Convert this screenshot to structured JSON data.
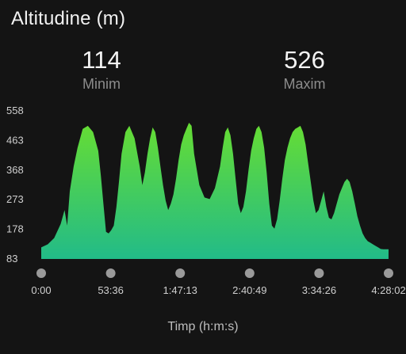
{
  "header": {
    "title": "Altitudine (m)"
  },
  "stats": {
    "min": {
      "value": "114",
      "label": "Minim"
    },
    "max": {
      "value": "526",
      "label": "Maxim"
    }
  },
  "chart_data": {
    "type": "area",
    "title": "Altitudine (m)",
    "xlabel": "Timp (h:m:s)",
    "ylabel": "",
    "y_ticks": [
      "558",
      "463",
      "368",
      "273",
      "178",
      "83"
    ],
    "x_ticks": [
      "0:00",
      "53:36",
      "1:47:13",
      "2:40:49",
      "3:34:26",
      "4:28:02"
    ],
    "x_unit": "minutes",
    "xlim": [
      0,
      268.03
    ],
    "ylim": [
      83,
      558
    ],
    "grid": false,
    "legend": "none",
    "colors": {
      "top": "#66dd33",
      "bottom": "#22bb88",
      "marker": "#9a9a9a"
    },
    "x": [
      0,
      5,
      10,
      15,
      18,
      20,
      22,
      25,
      28,
      32,
      36,
      40,
      44,
      46,
      48,
      50,
      52,
      54,
      56,
      58,
      60,
      62,
      65,
      68,
      72,
      76,
      78,
      80,
      82,
      84,
      86,
      88,
      90,
      92,
      94,
      96,
      98,
      100,
      102,
      104,
      106,
      108,
      110,
      112,
      114,
      116,
      118,
      122,
      126,
      130,
      134,
      138,
      140,
      142,
      144,
      146,
      148,
      150,
      152,
      154,
      156,
      158,
      160,
      162,
      164,
      166,
      168,
      170,
      172,
      174,
      176,
      178,
      180,
      182,
      184,
      186,
      188,
      190,
      192,
      194,
      196,
      198,
      200,
      202,
      204,
      206,
      208,
      210,
      212,
      214,
      216,
      218,
      220,
      222,
      224,
      226,
      228,
      230,
      232,
      234,
      236,
      238,
      240,
      242,
      244,
      246,
      248,
      250,
      252,
      254,
      256,
      258,
      260,
      262,
      264,
      268
    ],
    "y": [
      120,
      130,
      150,
      195,
      240,
      190,
      300,
      380,
      440,
      500,
      510,
      490,
      430,
      350,
      260,
      170,
      165,
      175,
      190,
      250,
      330,
      420,
      490,
      510,
      470,
      380,
      320,
      360,
      420,
      470,
      505,
      490,
      440,
      380,
      320,
      270,
      240,
      260,
      290,
      340,
      400,
      450,
      480,
      500,
      520,
      510,
      420,
      320,
      280,
      275,
      310,
      380,
      440,
      490,
      505,
      480,
      420,
      340,
      260,
      230,
      250,
      300,
      370,
      430,
      470,
      500,
      510,
      490,
      440,
      360,
      260,
      190,
      180,
      210,
      270,
      340,
      400,
      440,
      470,
      490,
      500,
      505,
      510,
      490,
      450,
      390,
      330,
      270,
      230,
      240,
      270,
      300,
      250,
      215,
      210,
      230,
      260,
      290,
      310,
      330,
      340,
      330,
      300,
      260,
      220,
      190,
      165,
      150,
      140,
      135,
      130,
      125,
      120,
      115,
      114,
      114
    ]
  }
}
